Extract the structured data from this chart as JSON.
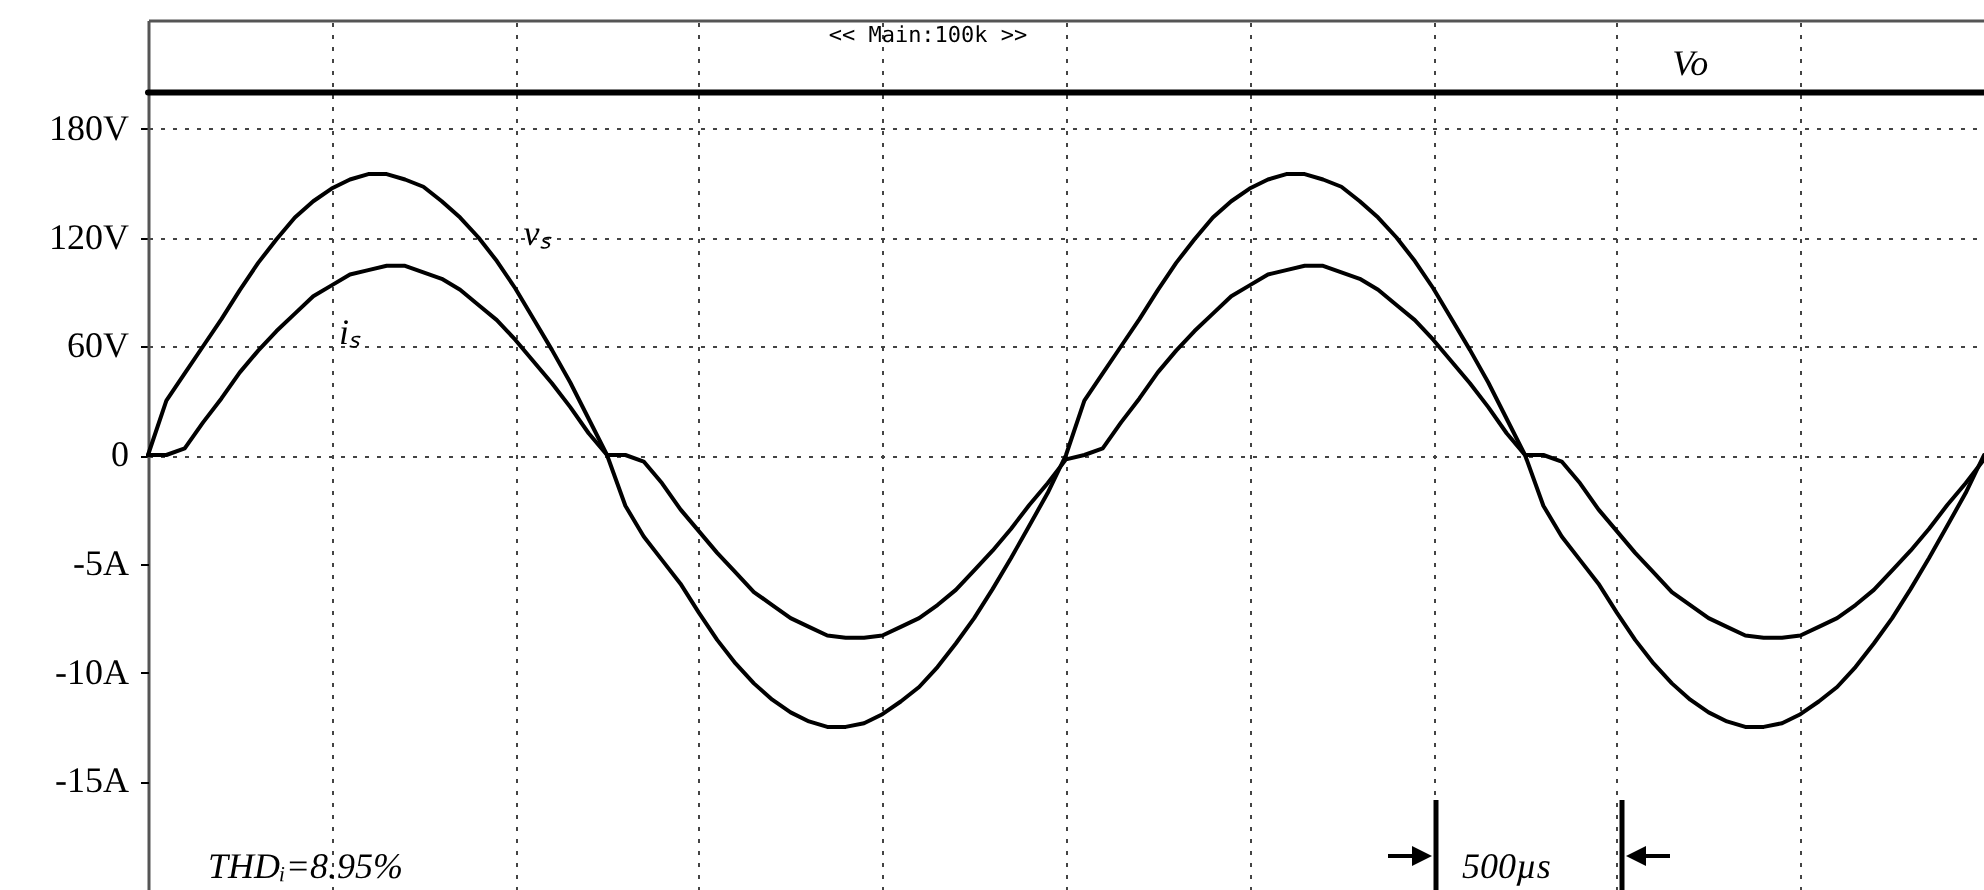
{
  "chart_data": {
    "type": "line",
    "categories": [
      null,
      null,
      null,
      null,
      null,
      null,
      null,
      null,
      null,
      null,
      null,
      null,
      null,
      null,
      null,
      null,
      null,
      null,
      null,
      null,
      null,
      null,
      null,
      null,
      null,
      null,
      null,
      null,
      null,
      null,
      null,
      null,
      null,
      null,
      null,
      null,
      null,
      null,
      null,
      null,
      null,
      null,
      null,
      null,
      null,
      null,
      null,
      null,
      null,
      null,
      null,
      null,
      null,
      null,
      null,
      null,
      null,
      null,
      null,
      null,
      null,
      null,
      null,
      null,
      null,
      null,
      null,
      null,
      null,
      null,
      null,
      null,
      null,
      null,
      null,
      null,
      null,
      null,
      null,
      null,
      null,
      null,
      null,
      null,
      null,
      null,
      null,
      null,
      null,
      null,
      null,
      null,
      null,
      null,
      null,
      null,
      null,
      null,
      null,
      null,
      null
    ],
    "series": [
      {
        "name": "Vo",
        "color": "#000000",
        "values": [
          200,
          200,
          200,
          200,
          200,
          200,
          200,
          200,
          200,
          200,
          200,
          200,
          200,
          200,
          200,
          200,
          200,
          200,
          200,
          200,
          200,
          200,
          200,
          200,
          200,
          200,
          200,
          200,
          200,
          200,
          200,
          200,
          200,
          200,
          200,
          200,
          200,
          200,
          200,
          200,
          200,
          200,
          200,
          200,
          200,
          200,
          200,
          200,
          200,
          200,
          200,
          200,
          200,
          200,
          200,
          200,
          200,
          200,
          200,
          200,
          200,
          200,
          200,
          200,
          200,
          200,
          200,
          200,
          200,
          200,
          200,
          200,
          200,
          200,
          200,
          200,
          200,
          200,
          200,
          200,
          200,
          200,
          200,
          200,
          200,
          200,
          200,
          200,
          200,
          200,
          200,
          200,
          200,
          200,
          200,
          200,
          200,
          200,
          200,
          200,
          200
        ]
      },
      {
        "name": "vₛ",
        "color": "#000000",
        "values": [
          0,
          30,
          45,
          60,
          75,
          91,
          106,
          119,
          131,
          140,
          147,
          152,
          155,
          155,
          152,
          148,
          140,
          131,
          120,
          107,
          92,
          75,
          58,
          40,
          20,
          0,
          -28,
          -45,
          -58,
          -71,
          -87,
          -102,
          -115,
          -126,
          -135,
          -142,
          -147,
          -150,
          -150,
          -148,
          -143,
          -136,
          -128,
          -117,
          -104,
          -90,
          -74,
          -57,
          -39,
          -21,
          0,
          30,
          45,
          60,
          75,
          91,
          106,
          119,
          131,
          140,
          147,
          152,
          155,
          155,
          152,
          148,
          140,
          131,
          120,
          107,
          92,
          75,
          58,
          40,
          20,
          0,
          -28,
          -45,
          -58,
          -71,
          -87,
          -102,
          -115,
          -126,
          -135,
          -142,
          -147,
          -150,
          -150,
          -148,
          -143,
          -136,
          -128,
          -117,
          -104,
          -90,
          -74,
          -57,
          -39,
          -21,
          0
        ]
      },
      {
        "name": "iₛ",
        "color": "#000000",
        "axis": "y2",
        "values": [
          0,
          0,
          0.3,
          1.5,
          2.6,
          3.8,
          4.8,
          5.7,
          6.5,
          7.3,
          7.8,
          8.3,
          8.5,
          8.7,
          8.7,
          8.4,
          8.1,
          7.6,
          6.9,
          6.2,
          5.3,
          4.3,
          3.3,
          2.2,
          1,
          0,
          0,
          -0.3,
          -1.3,
          -2.5,
          -3.5,
          -4.5,
          -5.4,
          -6.3,
          -6.9,
          -7.5,
          -7.9,
          -8.3,
          -8.4,
          -8.4,
          -8.3,
          -7.9,
          -7.5,
          -6.9,
          -6.2,
          -5.3,
          -4.4,
          -3.4,
          -2.3,
          -1.3,
          -0.2,
          0,
          0.3,
          1.5,
          2.6,
          3.8,
          4.8,
          5.7,
          6.5,
          7.3,
          7.8,
          8.3,
          8.5,
          8.7,
          8.7,
          8.4,
          8.1,
          7.6,
          6.9,
          6.2,
          5.3,
          4.3,
          3.3,
          2.2,
          1,
          0,
          0,
          -0.3,
          -1.3,
          -2.5,
          -3.5,
          -4.5,
          -5.4,
          -6.3,
          -6.9,
          -7.5,
          -7.9,
          -8.3,
          -8.4,
          -8.4,
          -8.3,
          -7.9,
          -7.5,
          -6.9,
          -6.2,
          -5.3,
          -4.4,
          -3.4,
          -2.3,
          -1.3,
          -0.2
        ]
      }
    ],
    "ylim": [
      -240,
      240
    ],
    "yticks": [
      {
        "value": 180,
        "label": "180V"
      },
      {
        "value": 120,
        "label": "120V"
      },
      {
        "value": 60,
        "label": "60V"
      },
      0
    ],
    "y2lim": [
      -20,
      20
    ],
    "y2ticks": [
      {
        "value": -5,
        "label": "-5A"
      },
      {
        "value": -10,
        "label": "-10A"
      },
      {
        "value": -15,
        "label": "-15A"
      }
    ],
    "grid": true,
    "legend": false,
    "marker": "none",
    "line_style": "solid",
    "annotations": [
      "THDᵢ=8.95%",
      "500µs",
      "<< Main:100k >>"
    ]
  }
}
